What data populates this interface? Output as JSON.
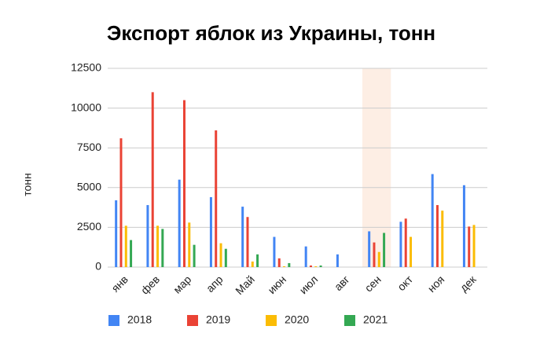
{
  "chart_data": {
    "type": "bar",
    "title": "Экспорт яблок из Украины, тонн",
    "y_label": "тонн",
    "categories": [
      "янв",
      "фев",
      "мар",
      "апр",
      "Май",
      "июн",
      "июл",
      "авг",
      "сен",
      "окт",
      "ноя",
      "дек"
    ],
    "series": [
      {
        "name": "2018",
        "color": "#4285f4",
        "values": [
          4200,
          3900,
          5500,
          4400,
          3800,
          1900,
          1300,
          800,
          2250,
          2850,
          5850,
          5150
        ]
      },
      {
        "name": "2019",
        "color": "#ea4335",
        "values": [
          8100,
          11000,
          10500,
          8600,
          3150,
          550,
          100,
          null,
          1550,
          3050,
          3900,
          2550
        ]
      },
      {
        "name": "2020",
        "color": "#fbbc04",
        "values": [
          2600,
          2600,
          2800,
          1500,
          350,
          50,
          50,
          null,
          950,
          1900,
          3550,
          2650
        ]
      },
      {
        "name": "2021",
        "color": "#34a853",
        "values": [
          1700,
          2400,
          1400,
          1150,
          800,
          250,
          100,
          null,
          2150,
          null,
          null,
          null
        ]
      }
    ],
    "ylim": [
      0,
      12500
    ],
    "yticks": [
      0,
      2500,
      5000,
      7500,
      10000,
      12500
    ],
    "grid": true,
    "legend": "bottom"
  }
}
